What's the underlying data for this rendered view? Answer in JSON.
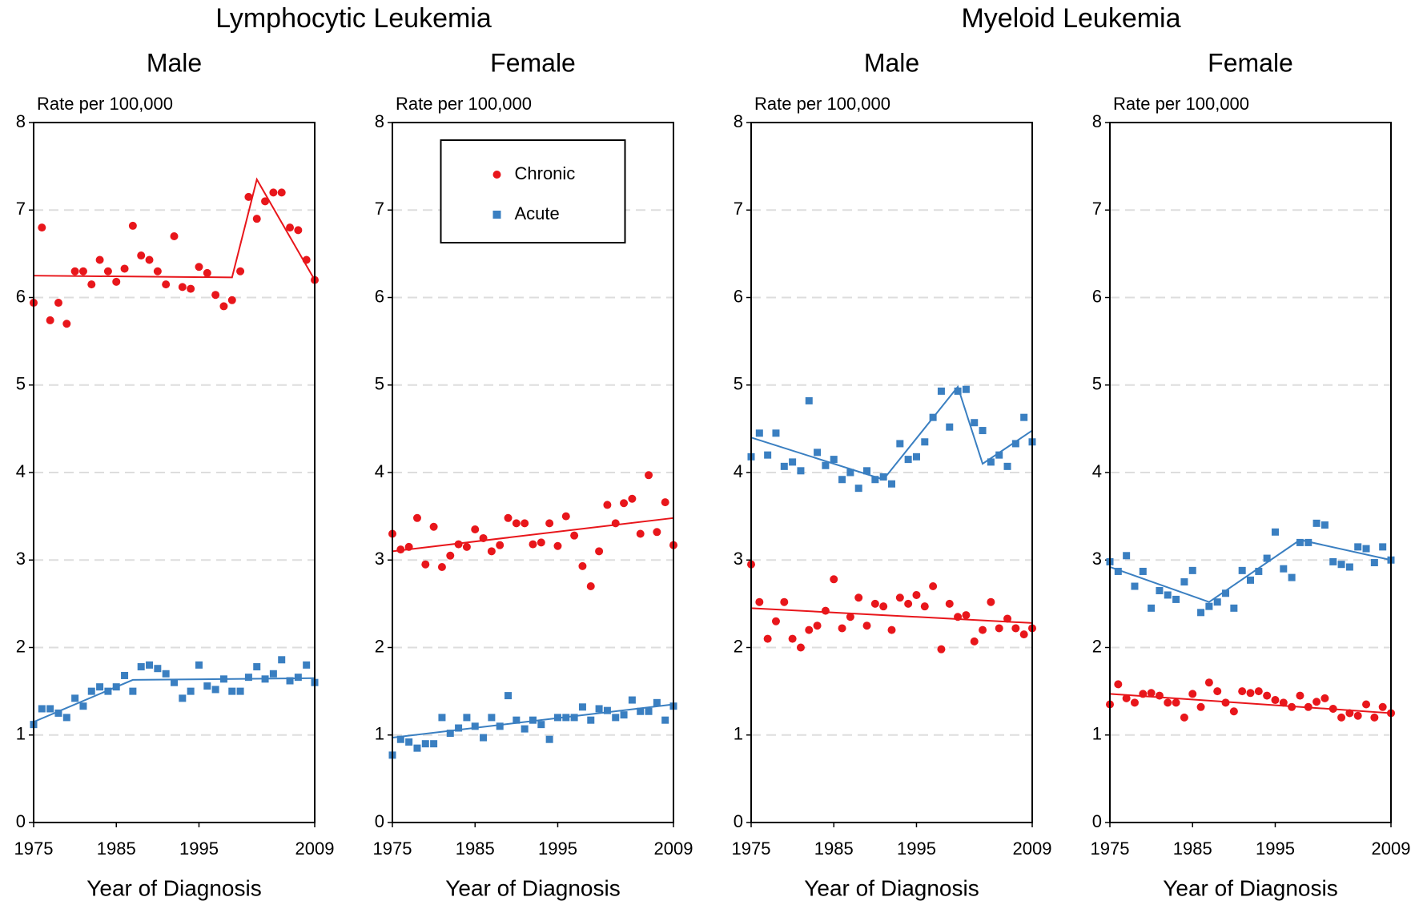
{
  "groups": [
    {
      "title": "Lymphocytic Leukemia"
    },
    {
      "title": "Myeloid Leukemia"
    }
  ],
  "chart_data": [
    {
      "type": "scatter",
      "title": "Male",
      "y_label": "Rate per 100,000",
      "x_label": "Year of Diagnosis",
      "x": [
        1975,
        1976,
        1977,
        1978,
        1979,
        1980,
        1981,
        1982,
        1983,
        1984,
        1985,
        1986,
        1987,
        1988,
        1989,
        1990,
        1991,
        1992,
        1993,
        1994,
        1995,
        1996,
        1997,
        1998,
        1999,
        2000,
        2001,
        2002,
        2003,
        2004,
        2005,
        2006,
        2007,
        2008,
        2009
      ],
      "xlim": [
        1975,
        2009
      ],
      "xticks": [
        1975,
        1985,
        1995,
        2009
      ],
      "ylim": [
        0,
        8
      ],
      "yticks": [
        0,
        1,
        2,
        3,
        4,
        5,
        6,
        7,
        8
      ],
      "grid": true,
      "series": [
        {
          "name": "Chronic",
          "color": "#e8161b",
          "marker": "circle",
          "values": [
            5.94,
            6.8,
            5.74,
            5.94,
            5.7,
            6.3,
            6.3,
            6.15,
            6.43,
            6.3,
            6.18,
            6.33,
            6.82,
            6.48,
            6.43,
            6.3,
            6.15,
            6.7,
            6.12,
            6.1,
            6.35,
            6.28,
            6.03,
            5.9,
            5.97,
            6.3,
            7.15,
            6.9,
            7.1,
            7.2,
            7.2,
            6.8,
            6.77,
            6.43,
            6.2
          ],
          "trend": {
            "x": [
              1975,
              1999,
              2002,
              2009
            ],
            "values": [
              6.25,
              6.23,
              7.35,
              6.2
            ]
          }
        },
        {
          "name": "Acute",
          "color": "#3a7fc1",
          "marker": "square",
          "values": [
            1.12,
            1.3,
            1.3,
            1.25,
            1.2,
            1.42,
            1.33,
            1.5,
            1.55,
            1.5,
            1.55,
            1.68,
            1.5,
            1.78,
            1.8,
            1.76,
            1.7,
            1.6,
            1.42,
            1.5,
            1.8,
            1.56,
            1.52,
            1.64,
            1.5,
            1.5,
            1.66,
            1.78,
            1.64,
            1.7,
            1.86,
            1.62,
            1.66,
            1.8,
            1.6
          ],
          "trend": {
            "x": [
              1975,
              1987,
              2009
            ],
            "values": [
              1.15,
              1.63,
              1.65
            ]
          }
        }
      ]
    },
    {
      "type": "scatter",
      "title": "Female",
      "y_label": "Rate per 100,000",
      "x_label": "Year of Diagnosis",
      "x": [
        1975,
        1976,
        1977,
        1978,
        1979,
        1980,
        1981,
        1982,
        1983,
        1984,
        1985,
        1986,
        1987,
        1988,
        1989,
        1990,
        1991,
        1992,
        1993,
        1994,
        1995,
        1996,
        1997,
        1998,
        1999,
        2000,
        2001,
        2002,
        2003,
        2004,
        2005,
        2006,
        2007,
        2008,
        2009
      ],
      "xlim": [
        1975,
        2009
      ],
      "xticks": [
        1975,
        1985,
        1995,
        2009
      ],
      "ylim": [
        0,
        8
      ],
      "yticks": [
        0,
        1,
        2,
        3,
        4,
        5,
        6,
        7,
        8
      ],
      "grid": true,
      "legend": "upper center",
      "series": [
        {
          "name": "Chronic",
          "color": "#e8161b",
          "marker": "circle",
          "values": [
            3.3,
            3.12,
            3.15,
            3.48,
            2.95,
            3.38,
            2.92,
            3.05,
            3.18,
            3.15,
            3.35,
            3.25,
            3.1,
            3.17,
            3.48,
            3.42,
            3.42,
            3.18,
            3.2,
            3.42,
            3.16,
            3.5,
            3.28,
            2.93,
            2.7,
            3.1,
            3.63,
            3.42,
            3.65,
            3.7,
            3.3,
            3.97,
            3.32,
            3.66,
            3.17
          ],
          "trend": {
            "x": [
              1975,
              2009
            ],
            "values": [
              3.1,
              3.48
            ]
          }
        },
        {
          "name": "Acute",
          "color": "#3a7fc1",
          "marker": "square",
          "values": [
            0.77,
            0.95,
            0.92,
            0.85,
            0.9,
            0.9,
            1.2,
            1.02,
            1.08,
            1.2,
            1.1,
            0.97,
            1.2,
            1.1,
            1.45,
            1.17,
            1.07,
            1.17,
            1.12,
            0.95,
            1.2,
            1.2,
            1.2,
            1.32,
            1.17,
            1.3,
            1.28,
            1.2,
            1.23,
            1.4,
            1.27,
            1.27,
            1.37,
            1.17,
            1.33
          ],
          "trend": {
            "x": [
              1975,
              2009
            ],
            "values": [
              0.97,
              1.35
            ]
          }
        }
      ]
    },
    {
      "type": "scatter",
      "title": "Male",
      "y_label": "Rate per 100,000",
      "x_label": "Year of Diagnosis",
      "x": [
        1975,
        1976,
        1977,
        1978,
        1979,
        1980,
        1981,
        1982,
        1983,
        1984,
        1985,
        1986,
        1987,
        1988,
        1989,
        1990,
        1991,
        1992,
        1993,
        1994,
        1995,
        1996,
        1997,
        1998,
        1999,
        2000,
        2001,
        2002,
        2003,
        2004,
        2005,
        2006,
        2007,
        2008,
        2009
      ],
      "xlim": [
        1975,
        2009
      ],
      "xticks": [
        1975,
        1985,
        1995,
        2009
      ],
      "ylim": [
        0,
        8
      ],
      "yticks": [
        0,
        1,
        2,
        3,
        4,
        5,
        6,
        7,
        8
      ],
      "grid": true,
      "series": [
        {
          "name": "Chronic",
          "color": "#e8161b",
          "marker": "circle",
          "values": [
            2.95,
            2.52,
            2.1,
            2.3,
            2.52,
            2.1,
            2.0,
            2.2,
            2.25,
            2.42,
            2.78,
            2.22,
            2.35,
            2.57,
            2.25,
            2.5,
            2.47,
            2.2,
            2.57,
            2.5,
            2.6,
            2.47,
            2.7,
            1.98,
            2.5,
            2.35,
            2.37,
            2.07,
            2.2,
            2.52,
            2.22,
            2.33,
            2.22,
            2.15,
            2.22
          ],
          "trend": {
            "x": [
              1975,
              2009
            ],
            "values": [
              2.45,
              2.28
            ]
          }
        },
        {
          "name": "Acute",
          "color": "#3a7fc1",
          "marker": "square",
          "values": [
            4.18,
            4.45,
            4.2,
            4.45,
            4.07,
            4.12,
            4.02,
            4.82,
            4.23,
            4.08,
            4.15,
            3.92,
            4.0,
            3.82,
            4.02,
            3.92,
            3.95,
            3.87,
            4.33,
            4.15,
            4.18,
            4.35,
            4.63,
            4.93,
            4.52,
            4.93,
            4.95,
            4.57,
            4.48,
            4.12,
            4.2,
            4.07,
            4.33,
            4.63,
            4.35
          ],
          "trend": {
            "x": [
              1975,
              1991,
              2000,
              2003,
              2009
            ],
            "values": [
              4.4,
              3.92,
              4.98,
              4.1,
              4.48
            ]
          }
        }
      ]
    },
    {
      "type": "scatter",
      "title": "Female",
      "y_label": "Rate per 100,000",
      "x_label": "Year of Diagnosis",
      "x": [
        1975,
        1976,
        1977,
        1978,
        1979,
        1980,
        1981,
        1982,
        1983,
        1984,
        1985,
        1986,
        1987,
        1988,
        1989,
        1990,
        1991,
        1992,
        1993,
        1994,
        1995,
        1996,
        1997,
        1998,
        1999,
        2000,
        2001,
        2002,
        2003,
        2004,
        2005,
        2006,
        2007,
        2008,
        2009
      ],
      "xlim": [
        1975,
        2009
      ],
      "xticks": [
        1975,
        1985,
        1995,
        2009
      ],
      "ylim": [
        0,
        8
      ],
      "yticks": [
        0,
        1,
        2,
        3,
        4,
        5,
        6,
        7,
        8
      ],
      "grid": true,
      "series": [
        {
          "name": "Chronic",
          "color": "#e8161b",
          "marker": "circle",
          "values": [
            1.35,
            1.58,
            1.42,
            1.37,
            1.47,
            1.48,
            1.45,
            1.37,
            1.37,
            1.2,
            1.47,
            1.32,
            1.6,
            1.5,
            1.37,
            1.27,
            1.5,
            1.48,
            1.5,
            1.45,
            1.4,
            1.37,
            1.32,
            1.45,
            1.32,
            1.38,
            1.42,
            1.3,
            1.2,
            1.25,
            1.22,
            1.35,
            1.2,
            1.32,
            1.25
          ],
          "trend": {
            "x": [
              1975,
              2009
            ],
            "values": [
              1.47,
              1.25
            ]
          }
        },
        {
          "name": "Acute",
          "color": "#3a7fc1",
          "marker": "square",
          "values": [
            2.98,
            2.87,
            3.05,
            2.7,
            2.87,
            2.45,
            2.65,
            2.6,
            2.55,
            2.75,
            2.88,
            2.4,
            2.47,
            2.52,
            2.62,
            2.45,
            2.88,
            2.77,
            2.87,
            3.02,
            3.32,
            2.9,
            2.8,
            3.2,
            3.2,
            3.42,
            3.4,
            2.98,
            2.95,
            2.92,
            3.15,
            3.13,
            2.97,
            3.15,
            3.0
          ],
          "trend": {
            "x": [
              1975,
              1987,
              1998,
              2009
            ],
            "values": [
              2.92,
              2.52,
              3.23,
              3.0
            ]
          }
        }
      ]
    }
  ]
}
